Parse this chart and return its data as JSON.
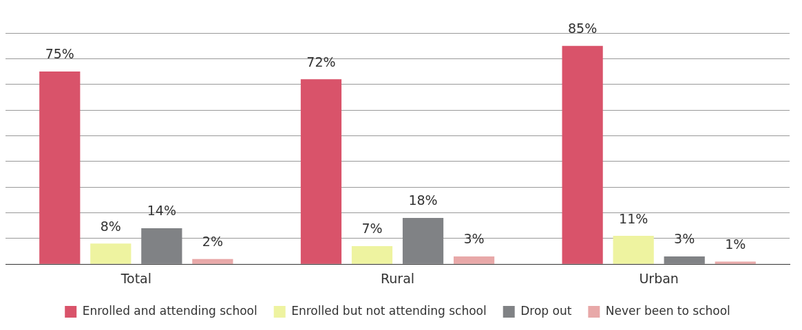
{
  "chart_data": {
    "type": "bar",
    "categories": [
      "Total",
      "Rural",
      "Urban"
    ],
    "series": [
      {
        "name": "Enrolled and attending school",
        "color": "#d9536a",
        "values": [
          75,
          72,
          85
        ],
        "value_labels": [
          "75%",
          "72%",
          "85%"
        ]
      },
      {
        "name": "Enrolled but not attending school",
        "color": "#eef3a0",
        "values": [
          8,
          7,
          11
        ],
        "value_labels": [
          "8%",
          "7%",
          "11%"
        ]
      },
      {
        "name": "Drop out",
        "color": "#808285",
        "values": [
          14,
          18,
          3
        ],
        "value_labels": [
          "14%",
          "18%",
          "3%"
        ]
      },
      {
        "name": "Never been to school",
        "color": "#e8a8a8",
        "values": [
          2,
          3,
          1
        ],
        "value_labels": [
          "2%",
          "3%",
          "1%"
        ]
      }
    ],
    "tick_labels": "x",
    "grid": "y",
    "legend": "bottom"
  }
}
